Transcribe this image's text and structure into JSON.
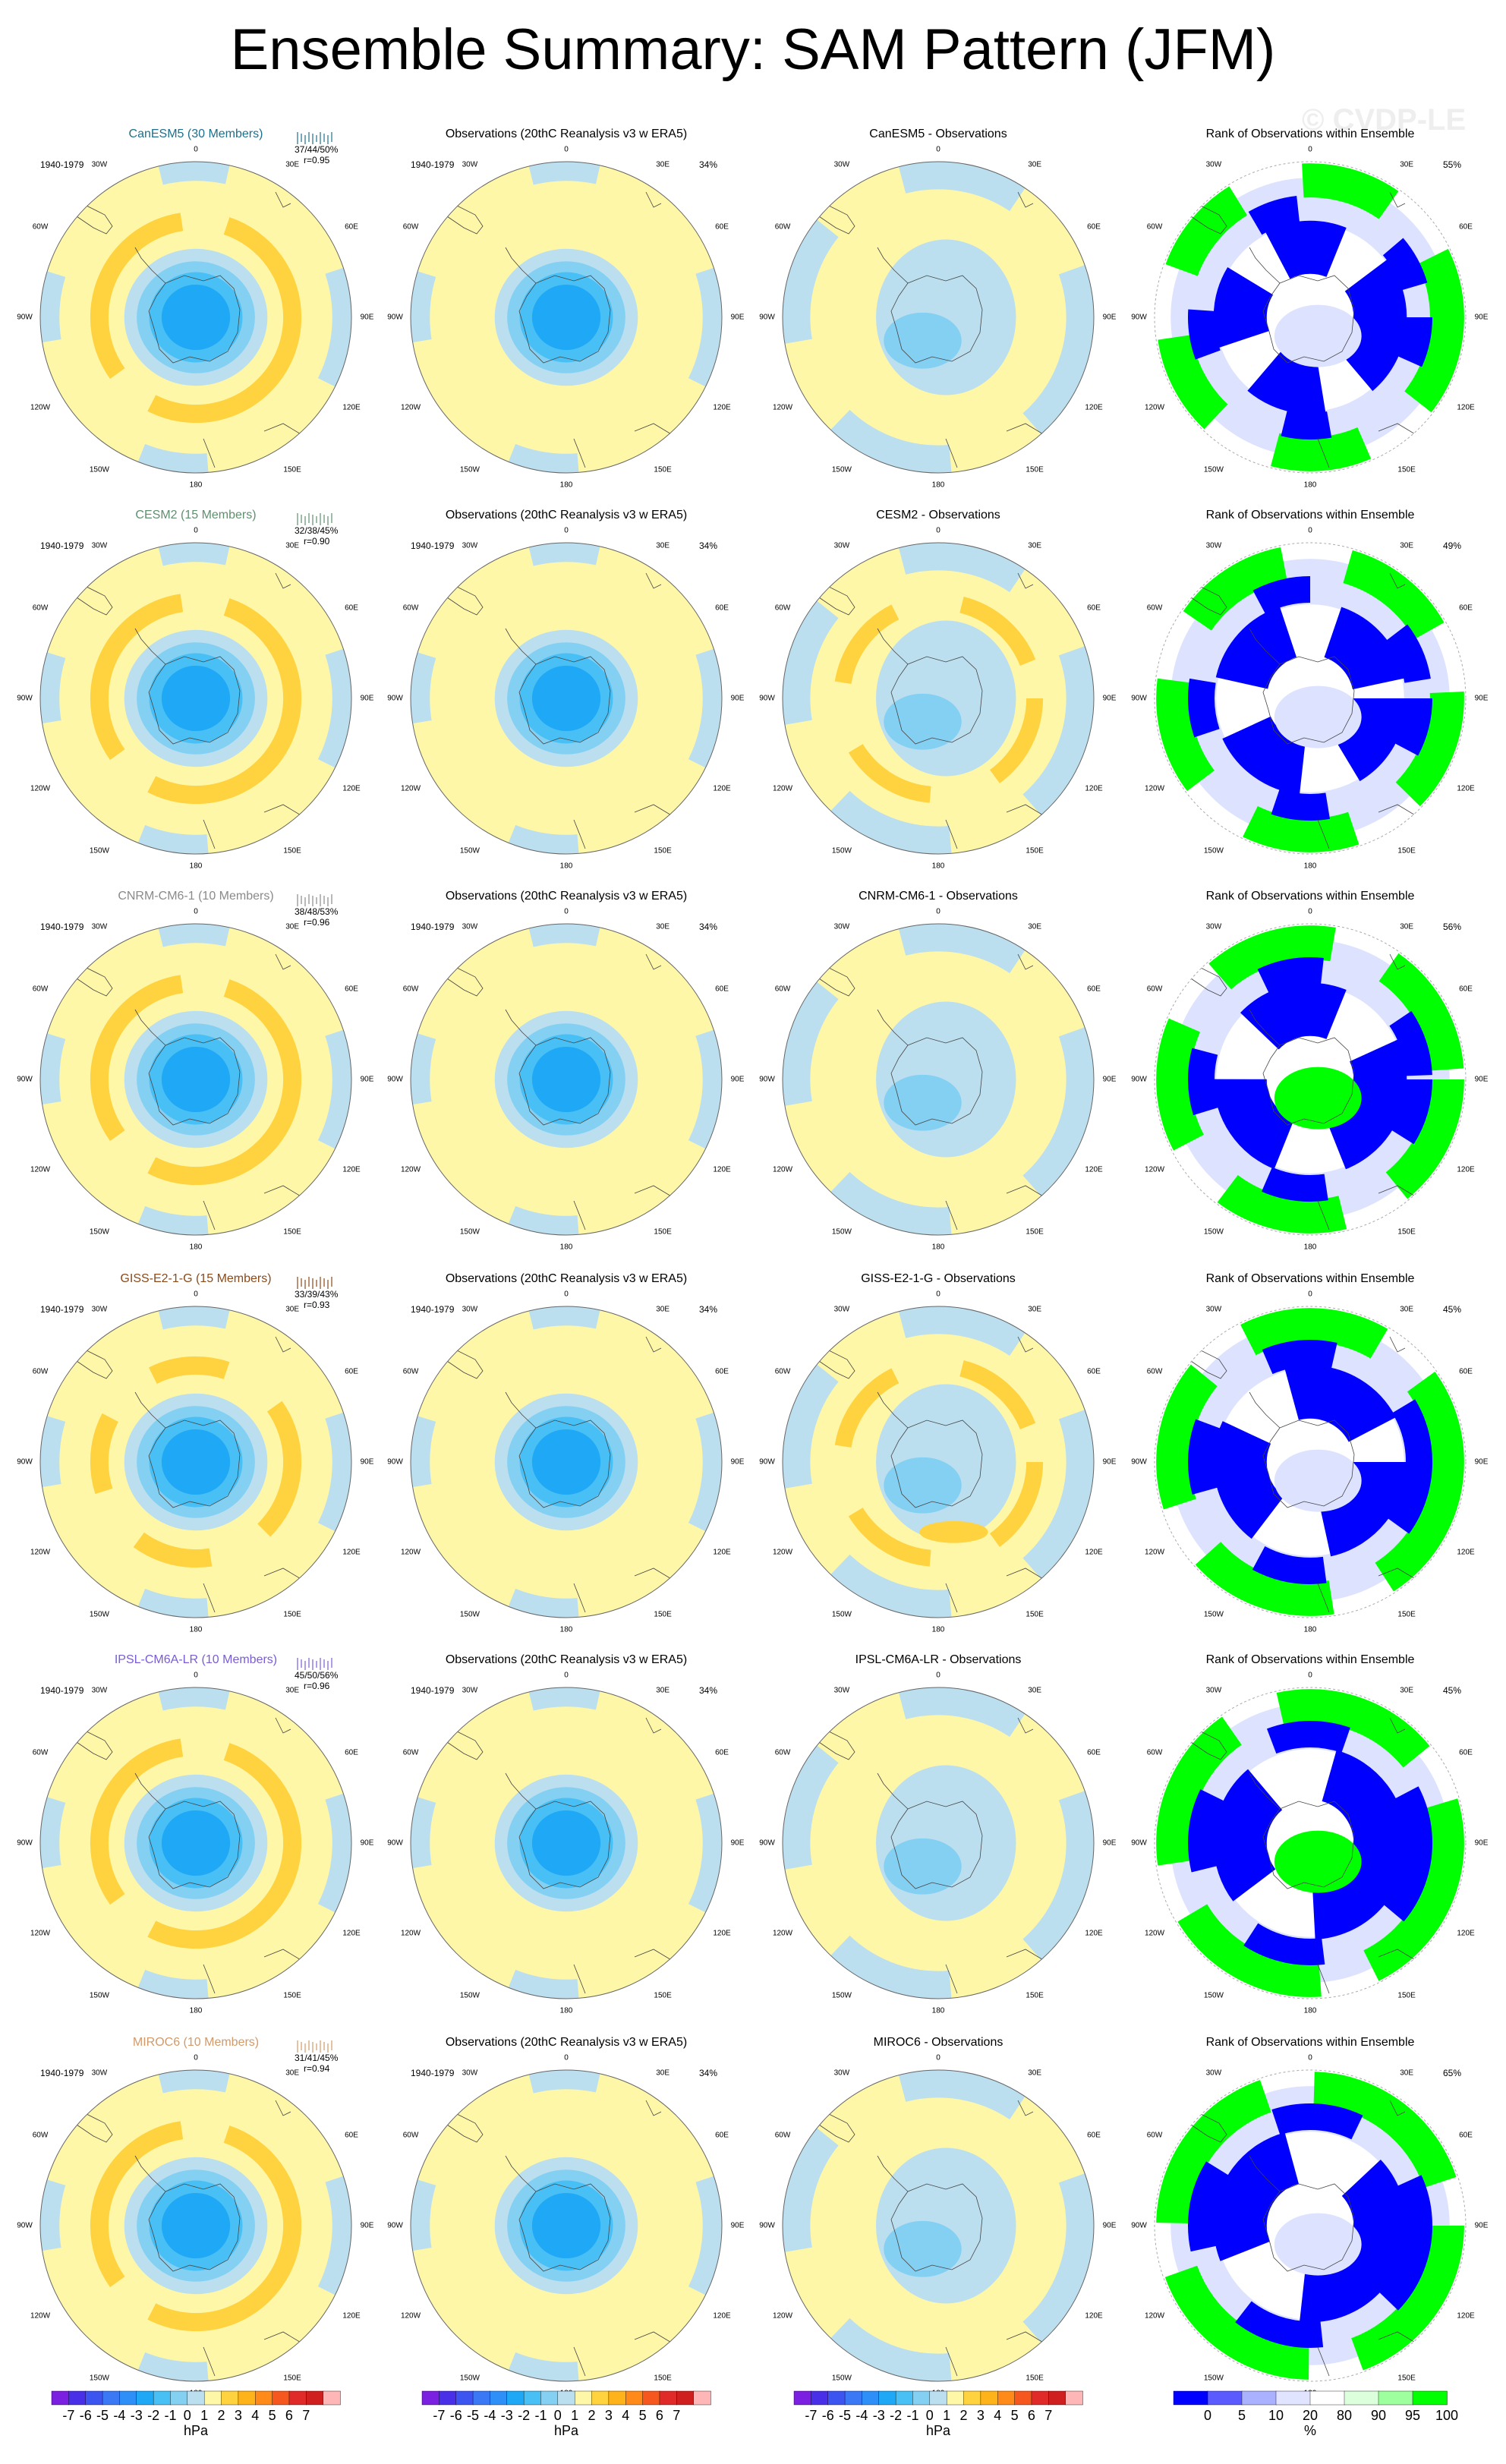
{
  "title": "Ensemble Summary: SAM Pattern (JFM)",
  "watermark": "© CVDP-LE",
  "period": "1940-1979",
  "obs_title": "Observations (20thC Reanalysis v3 w ERA5)",
  "obs_pct": "34%",
  "rank_title": "Rank of Observations within Ensemble",
  "lon_labels": {
    "n": "0",
    "e30": "30E",
    "e60": "60E",
    "e90": "90E",
    "e120": "120E",
    "e150": "150E",
    "s": "180",
    "w150": "150W",
    "w120": "120W",
    "w90": "90W",
    "w60": "60W",
    "w30": "30W"
  },
  "models": [
    {
      "title": "CanESM5 (30 Members)",
      "color": "#1f6f8b",
      "stats": "37/44/50%",
      "r": "r=0.95",
      "diff_title": "CanESM5 - Observations",
      "rank_pct": "55%"
    },
    {
      "title": "CESM2 (15 Members)",
      "color": "#5f8f6f",
      "stats": "32/38/45%",
      "r": "r=0.90",
      "diff_title": "CESM2 - Observations",
      "rank_pct": "49%"
    },
    {
      "title": "CNRM-CM6-1 (10 Members)",
      "color": "#8a8a8a",
      "stats": "38/48/53%",
      "r": "r=0.96",
      "diff_title": "CNRM-CM6-1 - Observations",
      "rank_pct": "56%"
    },
    {
      "title": "GISS-E2-1-G (15 Members)",
      "color": "#8a4a1a",
      "stats": "33/39/43%",
      "r": "r=0.93",
      "diff_title": "GISS-E2-1-G - Observations",
      "rank_pct": "45%"
    },
    {
      "title": "IPSL-CM6A-LR (10 Members)",
      "color": "#7a5cd6",
      "stats": "45/50/56%",
      "r": "r=0.96",
      "diff_title": "IPSL-CM6A-LR - Observations",
      "rank_pct": "45%"
    },
    {
      "title": "MIROC6 (10 Members)",
      "color": "#d19a6a",
      "stats": "31/41/45%",
      "r": "r=0.94",
      "diff_title": "MIROC6 - Observations",
      "rank_pct": "65%"
    }
  ],
  "colorbar": {
    "unit": "hPa",
    "ticks": [
      "-7",
      "-6",
      "-5",
      "-4",
      "-3",
      "-2",
      "-1",
      "0",
      "1",
      "2",
      "3",
      "4",
      "5",
      "6",
      "7"
    ],
    "colors": [
      "#7b1fe0",
      "#4a2fe8",
      "#3c55f0",
      "#3a78f5",
      "#2f8ff8",
      "#1fa8f5",
      "#49c0f5",
      "#84d0f3",
      "#bcdff0",
      "#fff7a8",
      "#ffd23f",
      "#ffb31a",
      "#ff8a1a",
      "#f5571f",
      "#e02a2a",
      "#cf1f1f",
      "#ffb6b6"
    ]
  },
  "rankbar": {
    "unit": "%",
    "ticks": [
      "0",
      "5",
      "10",
      "20",
      "80",
      "90",
      "95",
      "100"
    ],
    "colors": [
      "#0000ff",
      "#5a5aff",
      "#aab2ff",
      "#e0e4ff",
      "#ffffff",
      "#dcffdc",
      "#9dff9d",
      "#00ff00"
    ]
  },
  "palette": {
    "yellow": "#fff7a8",
    "lblue": "#bcdff0",
    "mblue": "#84d0f3",
    "blue1": "#49c0f5",
    "blue2": "#1fa8f5",
    "blue3": "#2f8ff8",
    "orange": "#ffd23f",
    "orange2": "#ffb31a",
    "rankblue": "#0000ff",
    "rankgreen": "#00ff00",
    "ranklight": "#dde2ff"
  }
}
